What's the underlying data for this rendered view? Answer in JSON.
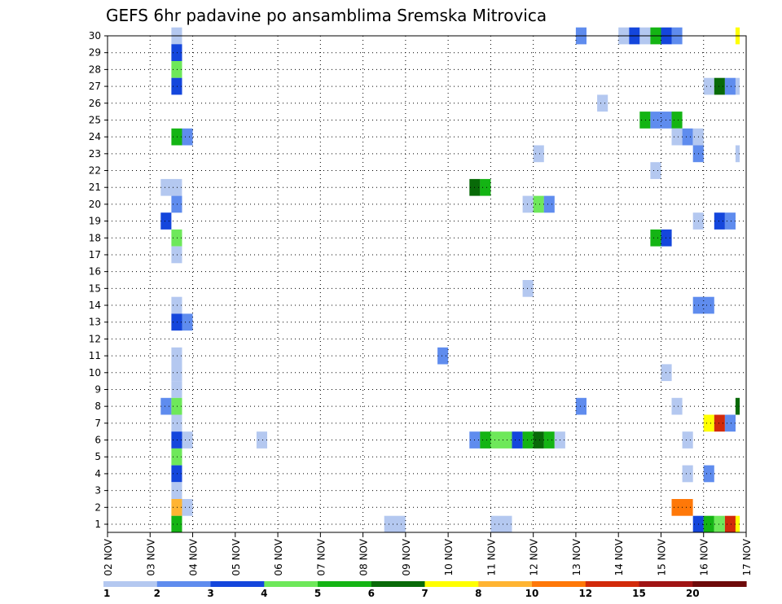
{
  "chart_data": {
    "type": "heatmap",
    "title": "GEFS 6hr padavine po ansamblima Sremska Mitrovica",
    "xlabel": "",
    "ylabel": "",
    "x_ticks": [
      "02 NOV",
      "03 NOV",
      "04 NOV",
      "05 NOV",
      "06 NOV",
      "07 NOV",
      "08 NOV",
      "09 NOV",
      "10 NOV",
      "11 NOV",
      "12 NOV",
      "13 NOV",
      "14 NOV",
      "15 NOV",
      "16 NOV",
      "17 NOV"
    ],
    "x_range_days": [
      0,
      15
    ],
    "y_ticks": [
      "1",
      "2",
      "3",
      "4",
      "5",
      "6",
      "7",
      "8",
      "9",
      "10",
      "11",
      "12",
      "13",
      "14",
      "15",
      "16",
      "17",
      "18",
      "19",
      "20",
      "21",
      "22",
      "23",
      "24",
      "25",
      "26",
      "27",
      "28",
      "29",
      "30"
    ],
    "y_range": [
      1,
      30
    ],
    "grid": true,
    "colorbar": {
      "labels": [
        "1",
        "2",
        "3",
        "4",
        "5",
        "6",
        "7",
        "8",
        "10",
        "12",
        "15",
        "20"
      ],
      "colors": [
        "#b4c8f0",
        "#5f8cee",
        "#1446dc",
        "#6ee85a",
        "#14b414",
        "#086a08",
        "#ffff00",
        "#ffb432",
        "#ff7808",
        "#d22a0a",
        "#a01414",
        "#6e0a0a"
      ]
    },
    "cells": [
      {
        "m": 30,
        "t": [
          3.5,
          3.75
        ],
        "c": 0
      },
      {
        "m": 29,
        "t": [
          3.5,
          3.75
        ],
        "c": 2
      },
      {
        "m": 28,
        "t": [
          3.5,
          3.75
        ],
        "c": 3
      },
      {
        "m": 27,
        "t": [
          3.5,
          3.75
        ],
        "c": 2
      },
      {
        "m": 24,
        "t": [
          3.5,
          3.75
        ],
        "c": 4
      },
      {
        "m": 24,
        "t": [
          3.75,
          4.0
        ],
        "c": 1
      },
      {
        "m": 21,
        "t": [
          3.25,
          3.75
        ],
        "c": 0
      },
      {
        "m": 20,
        "t": [
          3.5,
          3.75
        ],
        "c": 1
      },
      {
        "m": 19,
        "t": [
          3.25,
          3.5
        ],
        "c": 2
      },
      {
        "m": 18,
        "t": [
          3.5,
          3.75
        ],
        "c": 3
      },
      {
        "m": 17,
        "t": [
          3.5,
          3.75
        ],
        "c": 0
      },
      {
        "m": 14,
        "t": [
          3.5,
          3.75
        ],
        "c": 0
      },
      {
        "m": 13,
        "t": [
          3.5,
          3.75
        ],
        "c": 2
      },
      {
        "m": 13,
        "t": [
          3.75,
          4.0
        ],
        "c": 1
      },
      {
        "m": 11,
        "t": [
          3.5,
          3.75
        ],
        "c": 0
      },
      {
        "m": 10,
        "t": [
          3.5,
          3.75
        ],
        "c": 0
      },
      {
        "m": 9,
        "t": [
          3.5,
          3.75
        ],
        "c": 0
      },
      {
        "m": 8,
        "t": [
          3.25,
          3.5
        ],
        "c": 1
      },
      {
        "m": 8,
        "t": [
          3.5,
          3.75
        ],
        "c": 3
      },
      {
        "m": 7,
        "t": [
          3.5,
          3.75
        ],
        "c": 0
      },
      {
        "m": 6,
        "t": [
          3.5,
          3.75
        ],
        "c": 2
      },
      {
        "m": 6,
        "t": [
          3.75,
          4.0
        ],
        "c": 0
      },
      {
        "m": 5,
        "t": [
          3.5,
          3.75
        ],
        "c": 3
      },
      {
        "m": 4,
        "t": [
          3.5,
          3.75
        ],
        "c": 2
      },
      {
        "m": 3,
        "t": [
          3.5,
          3.75
        ],
        "c": 0
      },
      {
        "m": 2,
        "t": [
          3.5,
          3.75
        ],
        "c": 7
      },
      {
        "m": 2,
        "t": [
          3.75,
          4.0
        ],
        "c": 0
      },
      {
        "m": 1,
        "t": [
          3.5,
          3.75
        ],
        "c": 4
      },
      {
        "m": 6,
        "t": [
          5.5,
          5.75
        ],
        "c": 0
      },
      {
        "m": 1,
        "t": [
          8.5,
          9.0
        ],
        "c": 0
      },
      {
        "m": 11,
        "t": [
          9.75,
          10.0
        ],
        "c": 1
      },
      {
        "m": 21,
        "t": [
          10.5,
          10.75
        ],
        "c": 5
      },
      {
        "m": 21,
        "t": [
          10.75,
          11.0
        ],
        "c": 4
      },
      {
        "m": 6,
        "t": [
          10.5,
          10.75
        ],
        "c": 1
      },
      {
        "m": 6,
        "t": [
          10.75,
          11.0
        ],
        "c": 4
      },
      {
        "m": 6,
        "t": [
          11.0,
          11.5
        ],
        "c": 3
      },
      {
        "m": 6,
        "t": [
          11.5,
          11.75
        ],
        "c": 2
      },
      {
        "m": 6,
        "t": [
          11.75,
          12.0
        ],
        "c": 4
      },
      {
        "m": 6,
        "t": [
          12.0,
          12.25
        ],
        "c": 5
      },
      {
        "m": 6,
        "t": [
          12.25,
          12.5
        ],
        "c": 4
      },
      {
        "m": 6,
        "t": [
          12.5,
          12.75
        ],
        "c": 0
      },
      {
        "m": 1,
        "t": [
          11.0,
          11.5
        ],
        "c": 0
      },
      {
        "m": 20,
        "t": [
          11.75,
          12.0
        ],
        "c": 0
      },
      {
        "m": 20,
        "t": [
          12.0,
          12.25
        ],
        "c": 3
      },
      {
        "m": 20,
        "t": [
          12.25,
          12.5
        ],
        "c": 1
      },
      {
        "m": 23,
        "t": [
          12.0,
          12.25
        ],
        "c": 0
      },
      {
        "m": 15,
        "t": [
          11.75,
          12.0
        ],
        "c": 0
      },
      {
        "m": 30,
        "t": [
          13.0,
          13.25
        ],
        "c": 1
      },
      {
        "m": 8,
        "t": [
          13.0,
          13.25
        ],
        "c": 1
      },
      {
        "m": 26,
        "t": [
          13.5,
          13.75
        ],
        "c": 0
      },
      {
        "m": 30,
        "t": [
          14.0,
          14.25
        ],
        "c": 0
      },
      {
        "m": 30,
        "t": [
          14.25,
          14.5
        ],
        "c": 2
      },
      {
        "m": 30,
        "t": [
          14.5,
          14.75
        ],
        "c": 0
      },
      {
        "m": 30,
        "t": [
          14.75,
          15.0
        ],
        "c": 4
      },
      {
        "m": 30,
        "t": [
          15.0,
          15.25
        ],
        "c": 2
      },
      {
        "m": 30,
        "t": [
          15.25,
          15.5
        ],
        "c": 1
      },
      {
        "m": 25,
        "t": [
          14.5,
          14.75
        ],
        "c": 4
      },
      {
        "m": 25,
        "t": [
          14.75,
          15.25
        ],
        "c": 1
      },
      {
        "m": 25,
        "t": [
          15.25,
          15.5
        ],
        "c": 4
      },
      {
        "m": 22,
        "t": [
          14.75,
          15.0
        ],
        "c": 0
      },
      {
        "m": 18,
        "t": [
          14.75,
          15.0
        ],
        "c": 4
      },
      {
        "m": 18,
        "t": [
          15.0,
          15.25
        ],
        "c": 2
      },
      {
        "m": 10,
        "t": [
          15.0,
          15.25
        ],
        "c": 0
      },
      {
        "m": 8,
        "t": [
          15.25,
          15.5
        ],
        "c": 0
      },
      {
        "m": 6,
        "t": [
          15.5,
          15.75
        ],
        "c": 0
      },
      {
        "m": 4,
        "t": [
          15.5,
          15.75
        ],
        "c": 0
      },
      {
        "m": 2,
        "t": [
          15.25,
          15.75
        ],
        "c": 8
      },
      {
        "m": 24,
        "t": [
          15.25,
          15.5
        ],
        "c": 0
      },
      {
        "m": 24,
        "t": [
          15.5,
          15.75
        ],
        "c": 1
      },
      {
        "m": 24,
        "t": [
          15.75,
          16.0
        ],
        "c": 0
      },
      {
        "m": 23,
        "t": [
          15.75,
          16.0
        ],
        "c": 1
      },
      {
        "m": 19,
        "t": [
          15.75,
          16.0
        ],
        "c": 0
      },
      {
        "m": 14,
        "t": [
          15.75,
          16.25
        ],
        "c": 1
      },
      {
        "m": 4,
        "t": [
          16.0,
          16.25
        ],
        "c": 1
      },
      {
        "m": 1,
        "t": [
          15.75,
          16.0
        ],
        "c": 2
      },
      {
        "m": 1,
        "t": [
          16.0,
          16.25
        ],
        "c": 4
      },
      {
        "m": 1,
        "t": [
          16.25,
          16.5
        ],
        "c": 3
      },
      {
        "m": 1,
        "t": [
          16.5,
          16.75
        ],
        "c": 9
      },
      {
        "m": 1,
        "t": [
          16.75,
          16.85
        ],
        "c": 6
      },
      {
        "m": 7,
        "t": [
          16.0,
          16.25
        ],
        "c": 6
      },
      {
        "m": 7,
        "t": [
          16.25,
          16.5
        ],
        "c": 9
      },
      {
        "m": 7,
        "t": [
          16.5,
          16.75
        ],
        "c": 1
      },
      {
        "m": 8,
        "t": [
          16.75,
          16.85
        ],
        "c": 5
      },
      {
        "m": 27,
        "t": [
          16.0,
          16.25
        ],
        "c": 0
      },
      {
        "m": 27,
        "t": [
          16.25,
          16.5
        ],
        "c": 5
      },
      {
        "m": 27,
        "t": [
          16.5,
          16.75
        ],
        "c": 1
      },
      {
        "m": 27,
        "t": [
          16.75,
          16.85
        ],
        "c": 0
      },
      {
        "m": 19,
        "t": [
          16.25,
          16.5
        ],
        "c": 2
      },
      {
        "m": 19,
        "t": [
          16.5,
          16.75
        ],
        "c": 1
      },
      {
        "m": 23,
        "t": [
          16.75,
          16.85
        ],
        "c": 0
      },
      {
        "m": 30,
        "t": [
          16.75,
          16.85
        ],
        "c": 6
      }
    ]
  }
}
